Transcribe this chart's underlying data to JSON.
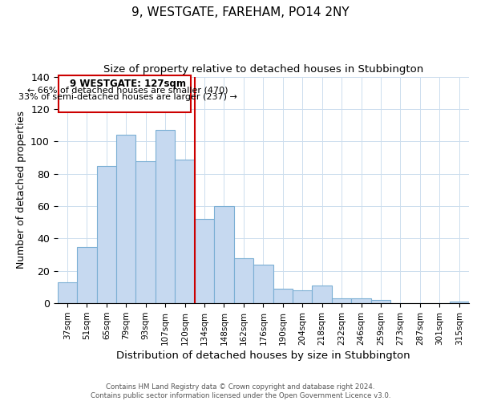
{
  "title": "9, WESTGATE, FAREHAM, PO14 2NY",
  "subtitle": "Size of property relative to detached houses in Stubbington",
  "xlabel": "Distribution of detached houses by size in Stubbington",
  "ylabel": "Number of detached properties",
  "bar_labels": [
    "37sqm",
    "51sqm",
    "65sqm",
    "79sqm",
    "93sqm",
    "107sqm",
    "120sqm",
    "134sqm",
    "148sqm",
    "162sqm",
    "176sqm",
    "190sqm",
    "204sqm",
    "218sqm",
    "232sqm",
    "246sqm",
    "259sqm",
    "273sqm",
    "287sqm",
    "301sqm",
    "315sqm"
  ],
  "bar_values": [
    13,
    35,
    85,
    104,
    88,
    107,
    89,
    52,
    60,
    28,
    24,
    9,
    8,
    11,
    3,
    3,
    2,
    0,
    0,
    0,
    1
  ],
  "bar_color": "#c6d9f0",
  "bar_edge_color": "#7bafd4",
  "vline_x": 6.5,
  "vline_color": "#cc0000",
  "annotation_title": "9 WESTGATE: 127sqm",
  "annotation_line1": "← 66% of detached houses are smaller (470)",
  "annotation_line2": "33% of semi-detached houses are larger (237) →",
  "annotation_box_color": "#ffffff",
  "annotation_box_edge": "#cc0000",
  "ylim": [
    0,
    140
  ],
  "yticks": [
    0,
    20,
    40,
    60,
    80,
    100,
    120,
    140
  ],
  "footer1": "Contains HM Land Registry data © Crown copyright and database right 2024.",
  "footer2": "Contains public sector information licensed under the Open Government Licence v3.0."
}
